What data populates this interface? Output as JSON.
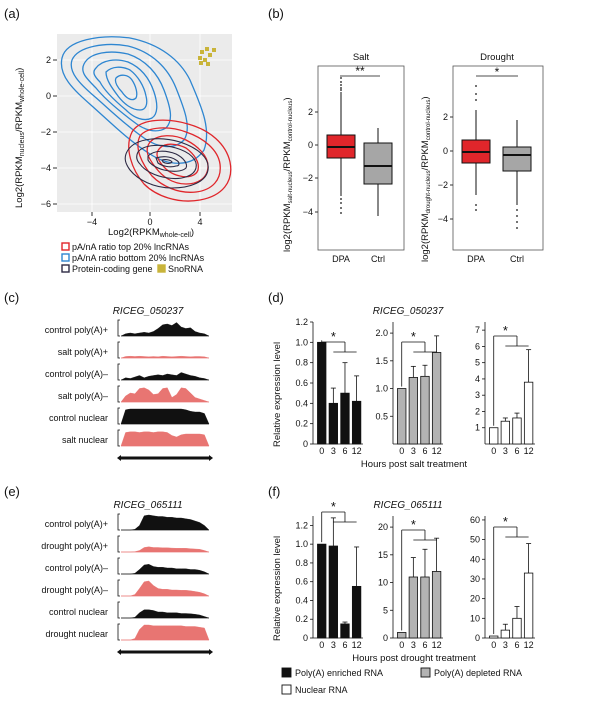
{
  "panels": {
    "a": "(a)",
    "b": "(b)",
    "c": "(c)",
    "d": "(d)",
    "e": "(e)",
    "f": "(f)"
  },
  "panel_a": {
    "xlabel_main": "Log2(RPKM",
    "xlabel_sub": "whole-cell",
    "xlabel_end": ")",
    "ylabel_main": "Log2(RPKM",
    "ylabel_sub1": "nucleus",
    "ylabel_mid": "/RPKM",
    "ylabel_sub2": "whole-cell",
    "ylabel_end": ")",
    "xticks": [
      "−4",
      "0",
      "4"
    ],
    "yticks": [
      "2",
      "0",
      "−2",
      "−4",
      "−6"
    ],
    "legend": [
      {
        "label": "pA/nA ratio top 20% lncRNAs",
        "color": "#e0262b"
      },
      {
        "label": "pA/nA ratio bottom 20% lncRNAs",
        "color": "#2e86d1"
      },
      {
        "label": "Protein-coding gene",
        "color": "#2d2a44"
      },
      {
        "label": "SnoRNA",
        "color": "#c9b43a"
      }
    ]
  },
  "panel_b": {
    "salt_title": "Salt",
    "drought_title": "Drought",
    "salt_sig": "**",
    "drought_sig": "*",
    "salt_ylabel": "log2(RPKM salt-nucleus/RPKM control-nucleus)",
    "drought_ylabel": "log2(RPKM drought-nucleus/RPKM control-nucleus)",
    "salt_yticks": [
      "2",
      "0",
      "−2",
      "−4"
    ],
    "drought_yticks": [
      "2",
      "0",
      "−2",
      "−4"
    ],
    "xcats": [
      "DPA",
      "Ctrl"
    ]
  },
  "panel_c": {
    "gene": "RICEG_050237",
    "tracks": [
      "control poly(A)+",
      "salt poly(A)+",
      "control poly(A)–",
      "salt poly(A)–",
      "control nuclear",
      "salt nuclear"
    ]
  },
  "panel_e": {
    "gene": "RICEG_065111",
    "tracks": [
      "control poly(A)+",
      "drought poly(A)+",
      "control poly(A)–",
      "drought poly(A)–",
      "control nuclear",
      "drought nuclear"
    ]
  },
  "panel_d": {
    "gene": "RICEG_050237",
    "xlabel": "Hours post salt treatment",
    "ylabel": "Relative expression level",
    "sig": "*"
  },
  "panel_f": {
    "gene": "RICEG_065111",
    "xlabel": "Hours post drought treatment",
    "ylabel": "Relative expression level",
    "sig": "*"
  },
  "bar_legend": [
    {
      "label": "Poly(A) enriched RNA",
      "color": "#111111"
    },
    {
      "label": "Poly(A) depleted RNA",
      "color": "#b3b3b3"
    },
    {
      "label": "Nuclear RNA",
      "color": "#ffffff"
    }
  ],
  "chart_data": [
    {
      "type": "bar",
      "name": "d-polyA",
      "title": "RICEG_050237",
      "categories": [
        "0",
        "3",
        "6",
        "12"
      ],
      "values": [
        1.0,
        0.4,
        0.5,
        0.42
      ],
      "errors": [
        0,
        0.15,
        0.3,
        0.25
      ],
      "ylim": [
        0,
        1.2
      ],
      "yticks": [
        "0",
        "0.2",
        "0.4",
        "0.6",
        "0.8",
        "1.0",
        "1.2"
      ],
      "color": "#111111"
    },
    {
      "type": "bar",
      "name": "d-depleted",
      "categories": [
        "0",
        "3",
        "6",
        "12"
      ],
      "values": [
        1.0,
        1.2,
        1.22,
        1.65
      ],
      "errors": [
        0,
        0.2,
        0.2,
        0.3
      ],
      "ylim": [
        0,
        2.2
      ],
      "yticks": [
        "0.5",
        "1.0",
        "1.5",
        "2.0"
      ],
      "color": "#b3b3b3"
    },
    {
      "type": "bar",
      "name": "d-nuclear",
      "categories": [
        "0",
        "3",
        "6",
        "12"
      ],
      "values": [
        1.0,
        1.4,
        1.6,
        3.8
      ],
      "errors": [
        0,
        0.2,
        0.3,
        2.0
      ],
      "ylim": [
        0,
        7.5
      ],
      "yticks": [
        "1",
        "2",
        "3",
        "4",
        "5",
        "6",
        "7"
      ],
      "color": "#ffffff"
    },
    {
      "type": "bar",
      "name": "f-polyA",
      "title": "RICEG_065111",
      "categories": [
        "0",
        "3",
        "6",
        "12"
      ],
      "values": [
        1.0,
        0.98,
        0.15,
        0.55
      ],
      "errors": [
        0,
        0.3,
        0.02,
        0.42
      ],
      "ylim": [
        0,
        1.3
      ],
      "yticks": [
        "0",
        "0.2",
        "0.4",
        "0.6",
        "0.8",
        "1.0",
        "1.2"
      ],
      "color": "#111111"
    },
    {
      "type": "bar",
      "name": "f-depleted",
      "categories": [
        "0",
        "3",
        "6",
        "12"
      ],
      "values": [
        1.0,
        11.0,
        11.0,
        12.0
      ],
      "errors": [
        0,
        3.5,
        5.0,
        6.0
      ],
      "ylim": [
        0,
        22
      ],
      "yticks": [
        "0",
        "5",
        "10",
        "15",
        "20"
      ],
      "color": "#b3b3b3"
    },
    {
      "type": "bar",
      "name": "f-nuclear",
      "categories": [
        "0",
        "3",
        "6",
        "12"
      ],
      "values": [
        1.0,
        4.0,
        10.0,
        33.0
      ],
      "errors": [
        0,
        3.0,
        6.0,
        15.0
      ],
      "ylim": [
        0,
        62
      ],
      "yticks": [
        "0",
        "10",
        "20",
        "30",
        "40",
        "50",
        "60"
      ],
      "color": "#ffffff"
    }
  ]
}
